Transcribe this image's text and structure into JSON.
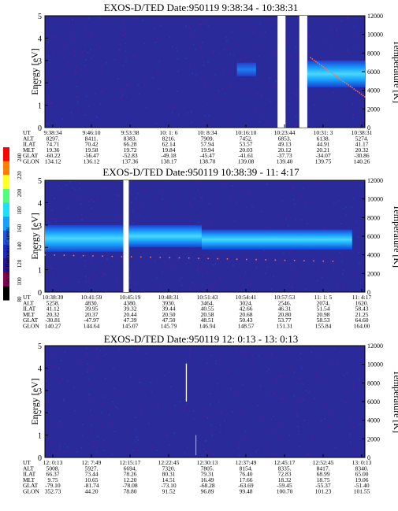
{
  "colorbar": {
    "label": "Second Harmonic Current",
    "ticks": [
      "240",
      "220",
      "200",
      "180",
      "160",
      "140",
      "120",
      "100",
      "80"
    ],
    "colors": [
      "#000000",
      "#8b0057",
      "#2a1590",
      "#202bc0",
      "#1c57e0",
      "#18a0ff",
      "#20e0ff",
      "#50ff80",
      "#ffff20",
      "#ff8000",
      "#ff0000"
    ]
  },
  "axes": {
    "energy_label": "Energy [eV]",
    "temp_label": "Temperature [K]",
    "energy_ticks": [
      "5",
      "4",
      "3",
      "2",
      "1",
      "0"
    ],
    "temp_ticks": [
      "12000",
      "10000",
      "8000",
      "6000",
      "4000",
      "2000",
      "0"
    ]
  },
  "row_labels": [
    "UT",
    "ALT",
    "ILAT",
    "MLT",
    "GLAT",
    "GLON"
  ],
  "panels": [
    {
      "title": "EXOS-D/TED   Date:950119  9:38:34 - 10:38:31",
      "columns": [
        [
          "9:38:34",
          "8297.",
          "74.71",
          "19.36",
          "-60.22",
          "134.12"
        ],
        [
          "9:46:10",
          "8411.",
          "70.42",
          "19.58",
          "-56.47",
          "136.12"
        ],
        [
          "9:53:38",
          "8383.",
          "66.28",
          "19.72",
          "-52.83",
          "137.36"
        ],
        [
          "10: 1: 6",
          "8216.",
          "62.14",
          "19.84",
          "-49.18",
          "138.17"
        ],
        [
          "10: 8:34",
          "7909.",
          "57.94",
          "19.94",
          "-45.47",
          "138.70"
        ],
        [
          "10:16:10",
          "7452.",
          "53.57",
          "20.03",
          "-41.61",
          "139.08"
        ],
        [
          "10:23:44",
          "6853.",
          "49.13",
          "20.12",
          "-37.73",
          "139.40"
        ],
        [
          "10:31: 3",
          "6138.",
          "44.91",
          "20.21",
          "-34.07",
          "139.75"
        ],
        [
          "10:38:31",
          "5274.",
          "41.17",
          "20.32",
          "-30.86",
          "140.26"
        ]
      ]
    },
    {
      "title": "EXOS-D/TED   Date:950119  10:38:39 - 11: 4:17",
      "columns": [
        [
          "10:38:39",
          "5258.",
          "41.12",
          "20.32",
          "-30.81",
          "140.27"
        ],
        [
          "10:41:59",
          "4830.",
          "39.95",
          "20.37",
          "-47.97",
          "144.64"
        ],
        [
          "10:45:19",
          "4380.",
          "39.32",
          "20.44",
          "47.39",
          "145.07"
        ],
        [
          "10:48:31",
          "3930.",
          "39.44",
          "20.50",
          "47.50",
          "145.79"
        ],
        [
          "10:51:43",
          "3464.",
          "40.55",
          "20.58",
          "48.51",
          "146.94"
        ],
        [
          "10:54:41",
          "3024.",
          "42.66",
          "20.68",
          "50.43",
          "148.57"
        ],
        [
          "10:57:53",
          "2546.",
          "46.31",
          "20.80",
          "53.77",
          "151.31"
        ],
        [
          "11: 1: 5",
          "2074.",
          "51.54",
          "20.98",
          "58.53",
          "155.84"
        ],
        [
          "11: 4:17",
          "1620.",
          "58.43",
          "21.25",
          "64.60",
          "164.00"
        ]
      ]
    },
    {
      "title": "EXOS-D/TED   Date:950119  12: 0:13 - 13: 0:13",
      "columns": [
        [
          "12: 0:13",
          "5008.",
          "66.37",
          "9.75",
          "-79.10",
          "352.73"
        ],
        [
          "12: 7:49",
          "5927.",
          "73.44",
          "10.65",
          "-81.74",
          "44.20"
        ],
        [
          "12:15:17",
          "6694.",
          "78.26",
          "12.20",
          "-78.08",
          "78.80"
        ],
        [
          "12:22:45",
          "7320.",
          "80.31",
          "14.51",
          "-73.10",
          "91.52"
        ],
        [
          "12:30:13",
          "7805.",
          "79.31",
          "16.49",
          "-68.28",
          "96.89"
        ],
        [
          "12:37:49",
          "8154.",
          "76.40",
          "17.66",
          "-63.69",
          "99.48"
        ],
        [
          "12:45:17",
          "8335.",
          "72.83",
          "18.32",
          "-59.45",
          "100.70"
        ],
        [
          "12:52:45",
          "8417.",
          "68.99",
          "18.75",
          "-55.37",
          "101.23"
        ],
        [
          "13: 0:13",
          "8340.",
          "65.00",
          "19.06",
          "-51.40",
          "101.55"
        ]
      ]
    }
  ],
  "chart_data": [
    {
      "type": "heatmap",
      "title": "EXOS-D/TED   Date:950119  9:38:34 - 10:38:31",
      "ylabel": "Energy [eV]",
      "y2label": "Temperature [K]",
      "ylim": [
        0,
        5
      ],
      "y2lim": [
        0,
        12000
      ],
      "features": [
        {
          "kind": "gap",
          "t0": 0.727,
          "t1": 0.752
        },
        {
          "kind": "gap",
          "t0": 0.795,
          "t1": 0.82
        },
        {
          "kind": "band",
          "t0": 0.6,
          "t1": 0.66,
          "e0": 2.3,
          "e1": 2.9,
          "level": "mid"
        },
        {
          "kind": "band",
          "t0": 0.82,
          "t1": 1.0,
          "e0": 1.8,
          "e1": 3.0,
          "level": "high"
        }
      ],
      "temperature": {
        "t0": 0.83,
        "t1": 1.0,
        "T0": 7500,
        "T1": 3300
      }
    },
    {
      "type": "heatmap",
      "title": "EXOS-D/TED   Date:950119  10:38:39 - 11: 4:17",
      "ylabel": "Energy [eV]",
      "y2label": "Temperature [K]",
      "ylim": [
        0,
        5
      ],
      "y2lim": [
        0,
        12000
      ],
      "features": [
        {
          "kind": "gap",
          "t0": 0.245,
          "t1": 0.262
        },
        {
          "kind": "band",
          "t0": 0.0,
          "t1": 0.245,
          "e0": 1.8,
          "e1": 3.0,
          "level": "high"
        },
        {
          "kind": "band",
          "t0": 0.262,
          "t1": 0.49,
          "e0": 2.0,
          "e1": 3.0,
          "level": "high"
        },
        {
          "kind": "band",
          "t0": 0.49,
          "t1": 0.96,
          "e0": 1.9,
          "e1": 2.8,
          "level": "high"
        }
      ],
      "temperature": {
        "t0": 0.0,
        "t1": 0.9,
        "T0": 4000,
        "T1": 3300
      }
    },
    {
      "type": "heatmap",
      "title": "EXOS-D/TED   Date:950119  12: 0:13 - 13: 0:13",
      "ylabel": "Energy [eV]",
      "y2label": "Temperature [K]",
      "ylim": [
        0,
        5
      ],
      "y2lim": [
        0,
        12000
      ],
      "features": [],
      "temperature": null
    }
  ]
}
